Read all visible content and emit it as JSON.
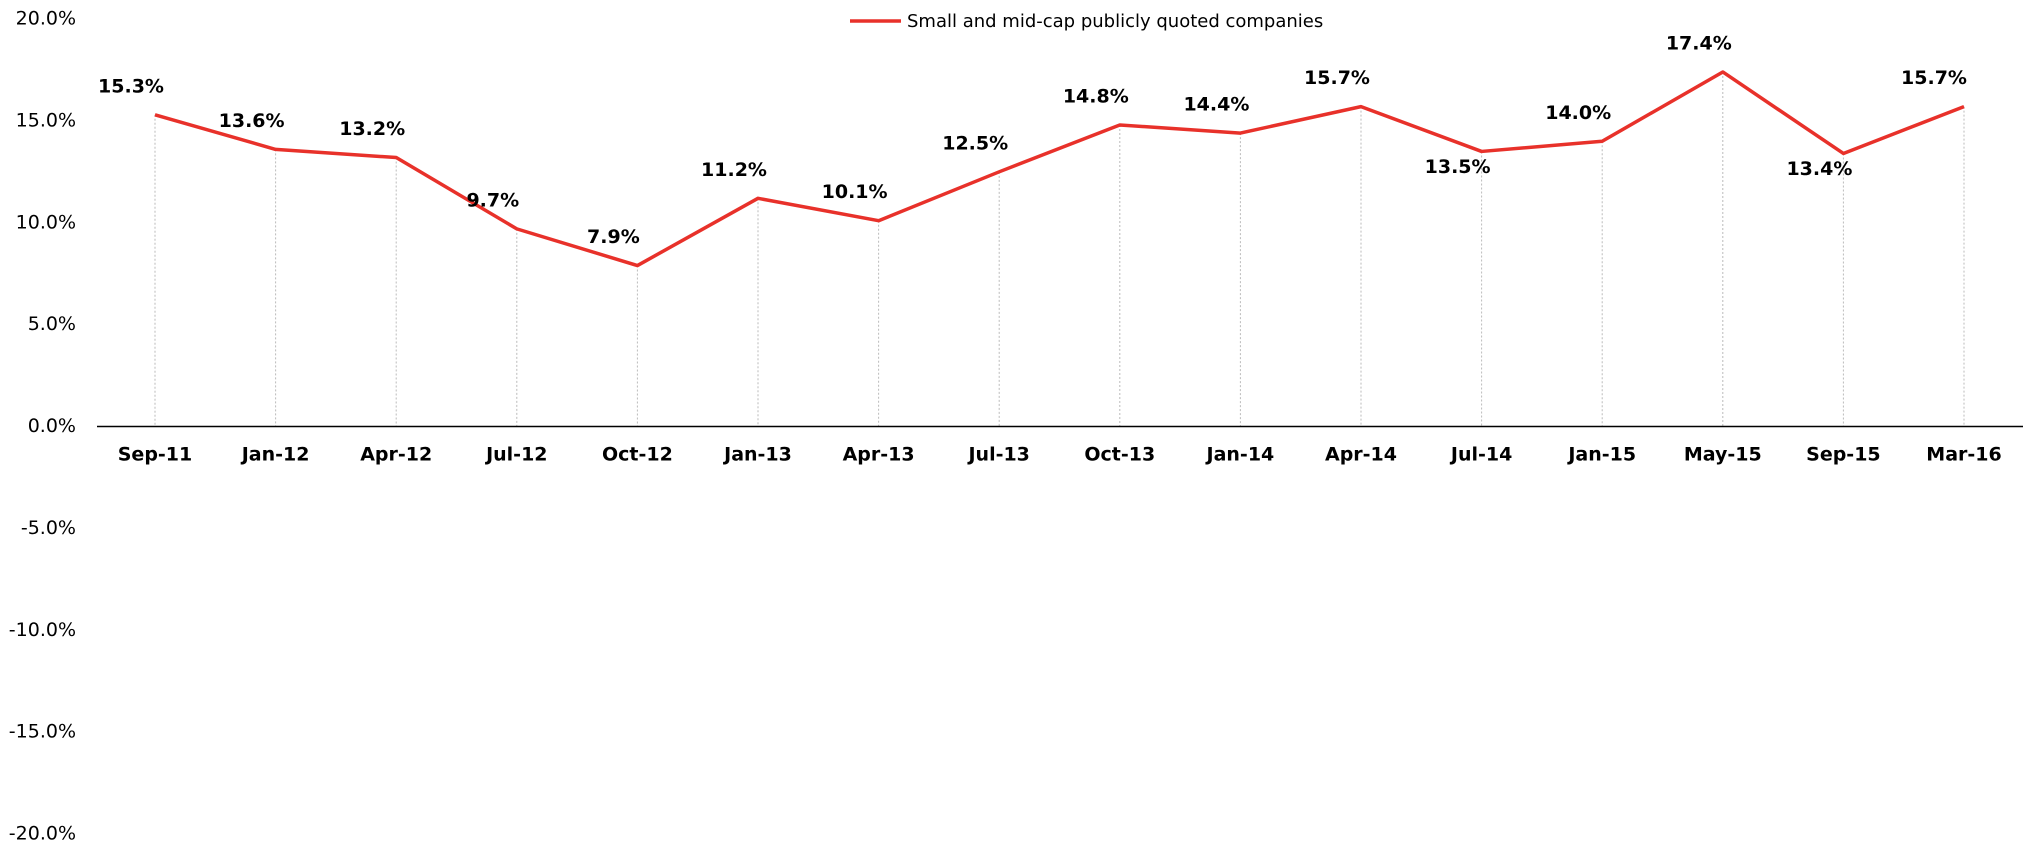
{
  "chart_data": {
    "type": "line",
    "categories": [
      "Sep-11",
      "Jan-12",
      "Apr-12",
      "Jul-12",
      "Oct-12",
      "Jan-13",
      "Apr-13",
      "Jul-13",
      "Oct-13",
      "Jan-14",
      "Apr-14",
      "Jul-14",
      "Jan-15",
      "May-15",
      "Sep-15",
      "Mar-16"
    ],
    "series": [
      {
        "name": "Small and mid-cap publicly quoted companies",
        "color": "#e8312a",
        "values": [
          15.3,
          13.6,
          13.2,
          9.7,
          7.9,
          11.2,
          10.1,
          12.5,
          14.8,
          14.4,
          15.7,
          13.5,
          14.0,
          17.4,
          13.4,
          15.7
        ],
        "value_labels": [
          "15.3%",
          "13.6%",
          "13.2%",
          "9.7%",
          "7.9%",
          "11.2%",
          "10.1%",
          "12.5%",
          "14.8%",
          "14.4%",
          "15.7%",
          "13.5%",
          "14.0%",
          "17.4%",
          "13.4%",
          "15.7%"
        ]
      }
    ],
    "ylim": [
      -20,
      20
    ],
    "yticks": [
      {
        "value": 20,
        "label": "20.0%"
      },
      {
        "value": 15,
        "label": "15.0%"
      },
      {
        "value": 10,
        "label": "10.0%"
      },
      {
        "value": 5,
        "label": "5.0%"
      },
      {
        "value": 0,
        "label": "0.0%"
      },
      {
        "value": -5,
        "label": "-5.0%"
      },
      {
        "value": -10,
        "label": "-10.0%"
      },
      {
        "value": -15,
        "label": "-15.0%"
      },
      {
        "value": -20,
        "label": "-20.0%"
      }
    ],
    "legend": "top"
  }
}
